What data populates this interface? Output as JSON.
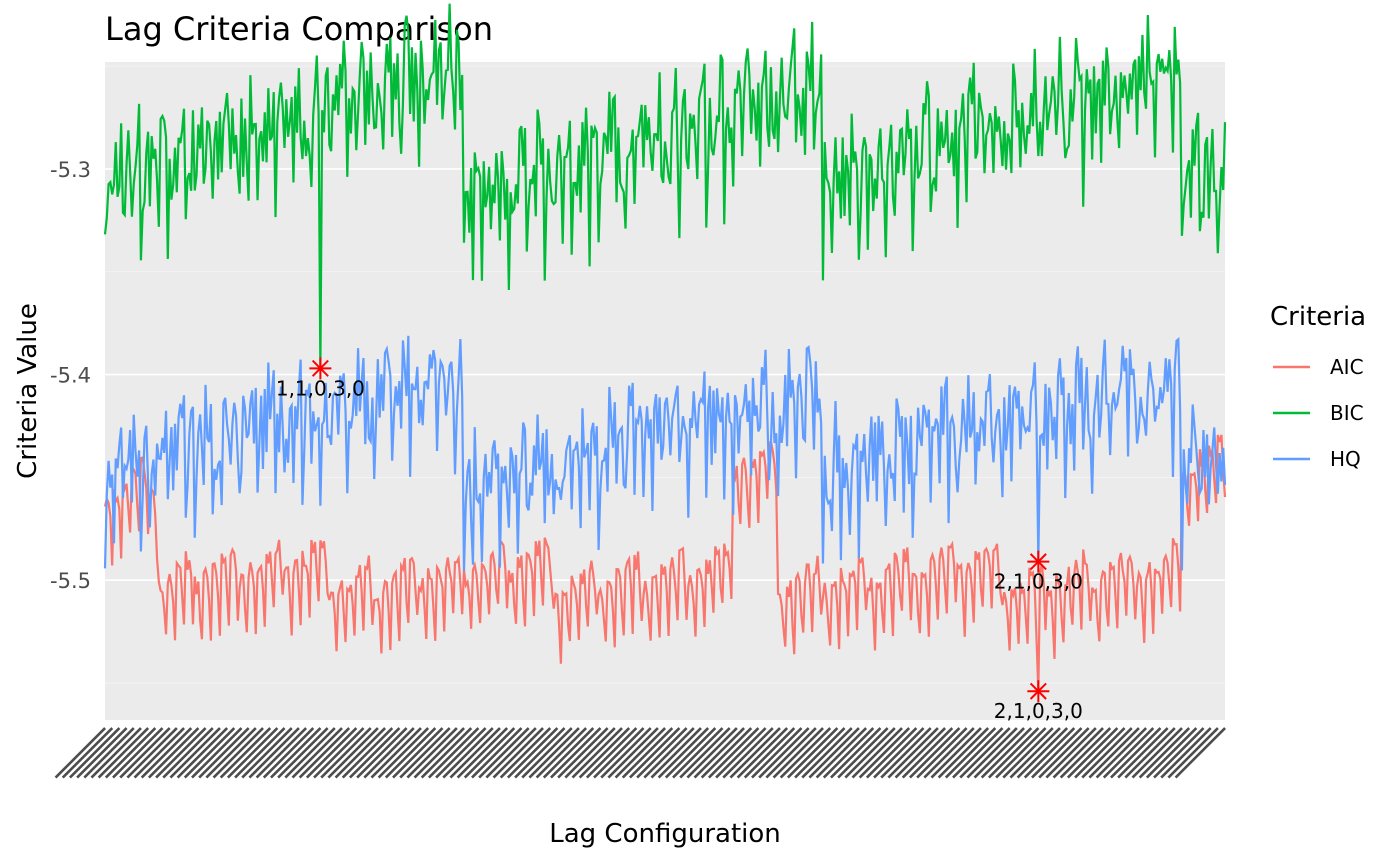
{
  "chart_data": {
    "type": "line",
    "title": "Lag Criteria Comparison",
    "xlabel": "Lag Configuration",
    "ylabel": "Criteria Value",
    "ylim": [
      -5.568,
      -5.248
    ],
    "yticks": [
      -5.3,
      -5.4,
      -5.5
    ],
    "ytick_labels": [
      "-5.3",
      "-5.4",
      "-5.5"
    ],
    "n_configurations": 625,
    "x_tick_labels_note": "overlapping rotated configuration labels (illegible)",
    "legend": {
      "title": "Criteria",
      "position": "right",
      "entries": [
        {
          "name": "AIC",
          "color": "#F8766D"
        },
        {
          "name": "BIC",
          "color": "#00BA38"
        },
        {
          "name": "HQ",
          "color": "#619CFF"
        }
      ]
    },
    "series": [
      {
        "name": "AIC",
        "color": "#F8766D",
        "offset": -5.509,
        "block_amp": 0.048,
        "spread": 0.065
      },
      {
        "name": "BIC",
        "color": "#00BA38",
        "offset": -5.3,
        "block_amp": 0.0,
        "spread": 0.11
      },
      {
        "name": "HQ",
        "color": "#619CFF",
        "offset": -5.44,
        "block_amp": 0.0,
        "spread": 0.09
      }
    ],
    "optima": [
      {
        "series": "BIC",
        "index": 120,
        "value": -5.397,
        "label": "1,1,0,3,0"
      },
      {
        "series": "HQ",
        "index": 520,
        "value": -5.491,
        "label": "2,1,0,3,0"
      },
      {
        "series": "AIC",
        "index": 520,
        "value": -5.554,
        "label": "2,1,0,3,0"
      }
    ],
    "marker_color": "#FF0000"
  }
}
